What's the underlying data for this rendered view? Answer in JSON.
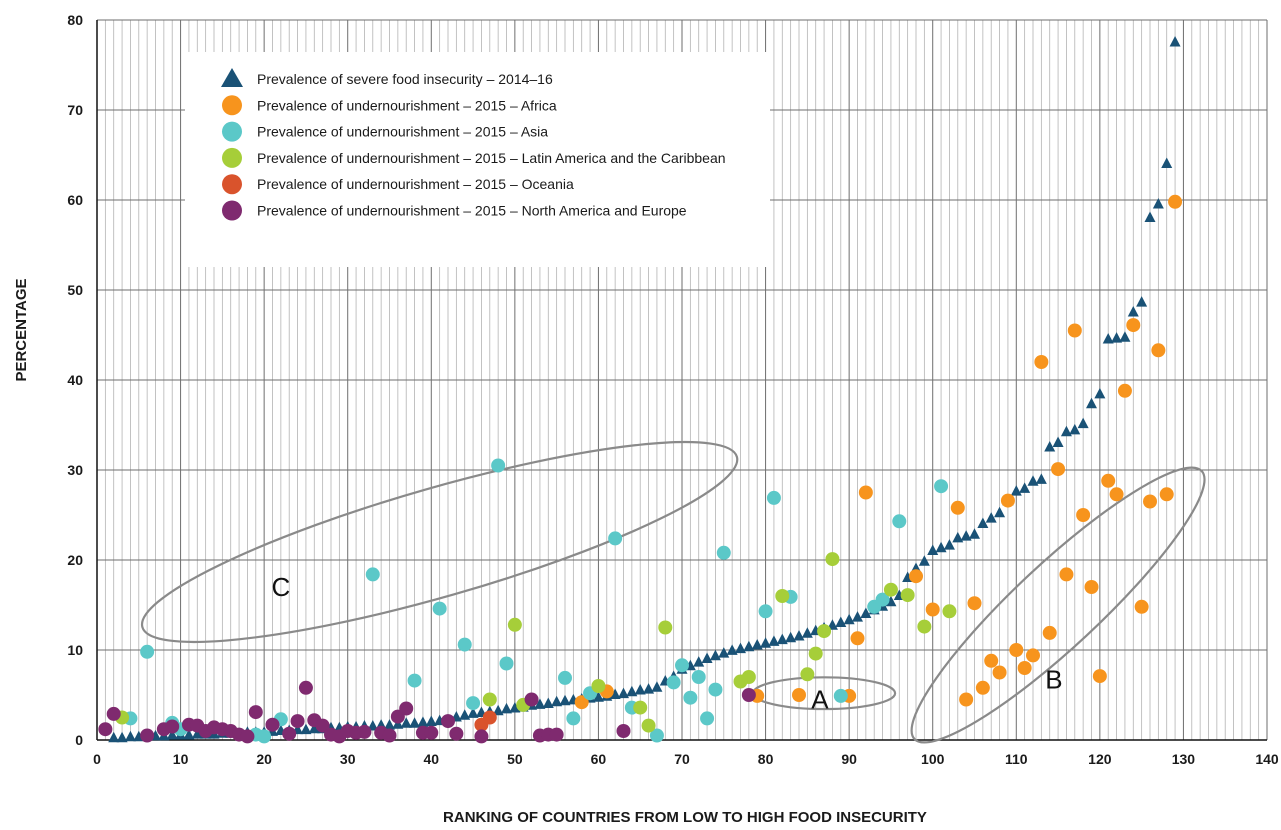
{
  "chart_data": {
    "type": "scatter",
    "xlabel": "RANKING OF COUNTRIES FROM LOW TO HIGH FOOD INSECURITY",
    "ylabel": "PERCENTAGE",
    "xlim": [
      0,
      140
    ],
    "ylim": [
      0,
      80
    ],
    "x_ticks": [
      0,
      10,
      20,
      30,
      40,
      50,
      60,
      70,
      80,
      90,
      100,
      110,
      120,
      130,
      140
    ],
    "y_ticks": [
      0,
      10,
      20,
      30,
      40,
      50,
      60,
      70,
      80
    ],
    "grid": true,
    "legend_position": "top-left",
    "annotations": [
      {
        "label": "A",
        "shape": "ellipse",
        "center": [
          87,
          5.2
        ],
        "radii": [
          8.5,
          1.9
        ],
        "angle_deg": 0
      },
      {
        "label": "B",
        "shape": "ellipse",
        "center": [
          115,
          15
        ],
        "radii": [
          23.5,
          5
        ],
        "angle_deg": 43
      },
      {
        "label": "C",
        "shape": "ellipse",
        "center": [
          41,
          22
        ],
        "radii": [
          37,
          6.5
        ],
        "angle_deg": 16
      }
    ],
    "series": [
      {
        "name": "Prevalence of severe food insecurity – 2014–16",
        "marker": "triangle",
        "color": "#1a5276",
        "points": [
          [
            2,
            0.2
          ],
          [
            3,
            0.2
          ],
          [
            4,
            0.3
          ],
          [
            5,
            0.3
          ],
          [
            6,
            0.4
          ],
          [
            7,
            0.4
          ],
          [
            8,
            0.4
          ],
          [
            9,
            0.5
          ],
          [
            10,
            0.5
          ],
          [
            11,
            0.5
          ],
          [
            12,
            0.6
          ],
          [
            13,
            0.6
          ],
          [
            14,
            0.6
          ],
          [
            15,
            0.7
          ],
          [
            16,
            0.7
          ],
          [
            17,
            0.7
          ],
          [
            18,
            0.8
          ],
          [
            19,
            0.8
          ],
          [
            20,
            0.8
          ],
          [
            21,
            0.9
          ],
          [
            22,
            1.0
          ],
          [
            23,
            1.0
          ],
          [
            24,
            1.1
          ],
          [
            25,
            1.1
          ],
          [
            26,
            1.2
          ],
          [
            27,
            1.2
          ],
          [
            28,
            1.3
          ],
          [
            29,
            1.3
          ],
          [
            30,
            1.4
          ],
          [
            31,
            1.4
          ],
          [
            32,
            1.5
          ],
          [
            33,
            1.5
          ],
          [
            34,
            1.6
          ],
          [
            35,
            1.6
          ],
          [
            36,
            1.7
          ],
          [
            37,
            1.8
          ],
          [
            38,
            1.8
          ],
          [
            39,
            1.9
          ],
          [
            40,
            2.0
          ],
          [
            41,
            2.1
          ],
          [
            42,
            2.2
          ],
          [
            43,
            2.5
          ],
          [
            44,
            2.7
          ],
          [
            45,
            2.9
          ],
          [
            46,
            3.0
          ],
          [
            47,
            3.1
          ],
          [
            48,
            3.2
          ],
          [
            49,
            3.4
          ],
          [
            50,
            3.5
          ],
          [
            51,
            3.6
          ],
          [
            52,
            3.8
          ],
          [
            53,
            3.9
          ],
          [
            54,
            4.0
          ],
          [
            55,
            4.2
          ],
          [
            56,
            4.3
          ],
          [
            57,
            4.4
          ],
          [
            58,
            4.5
          ],
          [
            59,
            4.6
          ],
          [
            60,
            4.7
          ],
          [
            61,
            4.8
          ],
          [
            62,
            5.0
          ],
          [
            63,
            5.1
          ],
          [
            64,
            5.3
          ],
          [
            65,
            5.5
          ],
          [
            66,
            5.6
          ],
          [
            67,
            5.8
          ],
          [
            68,
            6.5
          ],
          [
            69,
            7.0
          ],
          [
            70,
            7.8
          ],
          [
            71,
            8.2
          ],
          [
            72,
            8.6
          ],
          [
            73,
            9.0
          ],
          [
            74,
            9.3
          ],
          [
            75,
            9.6
          ],
          [
            76,
            9.9
          ],
          [
            77,
            10.1
          ],
          [
            78,
            10.3
          ],
          [
            79,
            10.5
          ],
          [
            80,
            10.7
          ],
          [
            81,
            10.9
          ],
          [
            82,
            11.1
          ],
          [
            83,
            11.3
          ],
          [
            84,
            11.5
          ],
          [
            85,
            11.8
          ],
          [
            86,
            12.1
          ],
          [
            87,
            12.4
          ],
          [
            88,
            12.7
          ],
          [
            89,
            13.0
          ],
          [
            90,
            13.3
          ],
          [
            91,
            13.6
          ],
          [
            92,
            14.0
          ],
          [
            93,
            14.4
          ],
          [
            94,
            14.8
          ],
          [
            95,
            15.3
          ],
          [
            96,
            16.0
          ],
          [
            97,
            18.0
          ],
          [
            98,
            19.0
          ],
          [
            99,
            19.8
          ],
          [
            100,
            21.0
          ],
          [
            101,
            21.3
          ],
          [
            102,
            21.6
          ],
          [
            103,
            22.4
          ],
          [
            104,
            22.6
          ],
          [
            105,
            22.8
          ],
          [
            106,
            24.0
          ],
          [
            107,
            24.6
          ],
          [
            108,
            25.2
          ],
          [
            109,
            26.5
          ],
          [
            110,
            27.6
          ],
          [
            111,
            27.9
          ],
          [
            112,
            28.7
          ],
          [
            113,
            28.9
          ],
          [
            114,
            32.5
          ],
          [
            115,
            33.0
          ],
          [
            116,
            34.2
          ],
          [
            117,
            34.4
          ],
          [
            118,
            35.1
          ],
          [
            119,
            37.3
          ],
          [
            120,
            38.4
          ],
          [
            121,
            44.5
          ],
          [
            122,
            44.6
          ],
          [
            123,
            44.7
          ],
          [
            124,
            47.5
          ],
          [
            125,
            48.6
          ],
          [
            126,
            58.0
          ],
          [
            127,
            59.5
          ],
          [
            128,
            64.0
          ],
          [
            129,
            77.5
          ]
        ]
      },
      {
        "name": "Prevalence of undernourishment – 2015 – Africa",
        "marker": "circle",
        "color": "#f7941d",
        "points": [
          [
            58,
            4.2
          ],
          [
            61,
            5.4
          ],
          [
            79,
            4.9
          ],
          [
            84,
            5.0
          ],
          [
            90,
            4.9
          ],
          [
            91,
            11.3
          ],
          [
            92,
            27.5
          ],
          [
            98,
            18.2
          ],
          [
            100,
            14.5
          ],
          [
            103,
            25.8
          ],
          [
            104,
            4.5
          ],
          [
            105,
            15.2
          ],
          [
            106,
            5.8
          ],
          [
            107,
            8.8
          ],
          [
            108,
            7.5
          ],
          [
            109,
            26.6
          ],
          [
            110,
            10.0
          ],
          [
            111,
            8.0
          ],
          [
            112,
            9.4
          ],
          [
            113,
            42.0
          ],
          [
            114,
            11.9
          ],
          [
            115,
            30.1
          ],
          [
            116,
            18.4
          ],
          [
            117,
            45.5
          ],
          [
            118,
            25.0
          ],
          [
            119,
            17.0
          ],
          [
            120,
            7.1
          ],
          [
            121,
            28.8
          ],
          [
            122,
            27.3
          ],
          [
            123,
            38.8
          ],
          [
            124,
            46.1
          ],
          [
            125,
            14.8
          ],
          [
            126,
            26.5
          ],
          [
            127,
            43.3
          ],
          [
            128,
            27.3
          ],
          [
            129,
            59.8
          ]
        ]
      },
      {
        "name": "Prevalence of undernourishment – 2015 – Asia",
        "marker": "circle",
        "color": "#5bc8c8",
        "points": [
          [
            4,
            2.4
          ],
          [
            6,
            9.8
          ],
          [
            9,
            1.9
          ],
          [
            10,
            1.2
          ],
          [
            19,
            0.6
          ],
          [
            20,
            0.4
          ],
          [
            22,
            2.3
          ],
          [
            33,
            18.4
          ],
          [
            38,
            6.6
          ],
          [
            41,
            14.6
          ],
          [
            44,
            10.6
          ],
          [
            45,
            4.1
          ],
          [
            48,
            30.5
          ],
          [
            49,
            8.5
          ],
          [
            56,
            6.9
          ],
          [
            57,
            2.4
          ],
          [
            59,
            5.2
          ],
          [
            62,
            22.4
          ],
          [
            64,
            3.6
          ],
          [
            67,
            0.5
          ],
          [
            69,
            6.4
          ],
          [
            70,
            8.3
          ],
          [
            71,
            4.7
          ],
          [
            72,
            7.0
          ],
          [
            73,
            2.4
          ],
          [
            74,
            5.6
          ],
          [
            75,
            20.8
          ],
          [
            80,
            14.3
          ],
          [
            81,
            26.9
          ],
          [
            83,
            15.9
          ],
          [
            89,
            4.9
          ],
          [
            93,
            14.8
          ],
          [
            94,
            15.6
          ],
          [
            96,
            24.3
          ],
          [
            101,
            28.2
          ]
        ]
      },
      {
        "name": "Prevalence of undernourishment – 2015 – Latin America and the Caribbean",
        "marker": "circle",
        "color": "#a6ce39",
        "points": [
          [
            3,
            2.5
          ],
          [
            47,
            4.5
          ],
          [
            50,
            12.8
          ],
          [
            51,
            3.9
          ],
          [
            60,
            6.0
          ],
          [
            65,
            3.6
          ],
          [
            66,
            1.6
          ],
          [
            68,
            12.5
          ],
          [
            77,
            6.5
          ],
          [
            78,
            7.0
          ],
          [
            82,
            16.0
          ],
          [
            85,
            7.3
          ],
          [
            86,
            9.6
          ],
          [
            87,
            12.1
          ],
          [
            88,
            20.1
          ],
          [
            95,
            16.7
          ],
          [
            97,
            16.1
          ],
          [
            99,
            12.6
          ],
          [
            102,
            14.3
          ]
        ]
      },
      {
        "name": "Prevalence of undernourishment – 2015 – Oceania",
        "marker": "circle",
        "color": "#d9532c",
        "points": [
          [
            46,
            1.7
          ],
          [
            47,
            2.5
          ]
        ]
      },
      {
        "name": "Prevalence of undernourishment – 2015 – North America and Europe",
        "marker": "circle",
        "color": "#7f2a6f",
        "points": [
          [
            1,
            1.2
          ],
          [
            2,
            2.9
          ],
          [
            6,
            0.5
          ],
          [
            8,
            1.2
          ],
          [
            9,
            1.5
          ],
          [
            11,
            1.7
          ],
          [
            12,
            1.6
          ],
          [
            13,
            1.0
          ],
          [
            14,
            1.4
          ],
          [
            15,
            1.2
          ],
          [
            16,
            1.0
          ],
          [
            17,
            0.6
          ],
          [
            18,
            0.4
          ],
          [
            19,
            3.1
          ],
          [
            21,
            1.7
          ],
          [
            23,
            0.7
          ],
          [
            24,
            2.1
          ],
          [
            25,
            5.8
          ],
          [
            26,
            2.2
          ],
          [
            27,
            1.6
          ],
          [
            28,
            0.6
          ],
          [
            29,
            0.4
          ],
          [
            30,
            1.0
          ],
          [
            31,
            0.8
          ],
          [
            32,
            0.9
          ],
          [
            34,
            0.8
          ],
          [
            35,
            0.5
          ],
          [
            36,
            2.6
          ],
          [
            37,
            3.5
          ],
          [
            39,
            0.8
          ],
          [
            40,
            0.8
          ],
          [
            42,
            2.1
          ],
          [
            43,
            0.7
          ],
          [
            46,
            0.4
          ],
          [
            52,
            4.5
          ],
          [
            53,
            0.5
          ],
          [
            54,
            0.6
          ],
          [
            55,
            0.6
          ],
          [
            63,
            1.0
          ],
          [
            78,
            5.0
          ]
        ]
      }
    ]
  }
}
